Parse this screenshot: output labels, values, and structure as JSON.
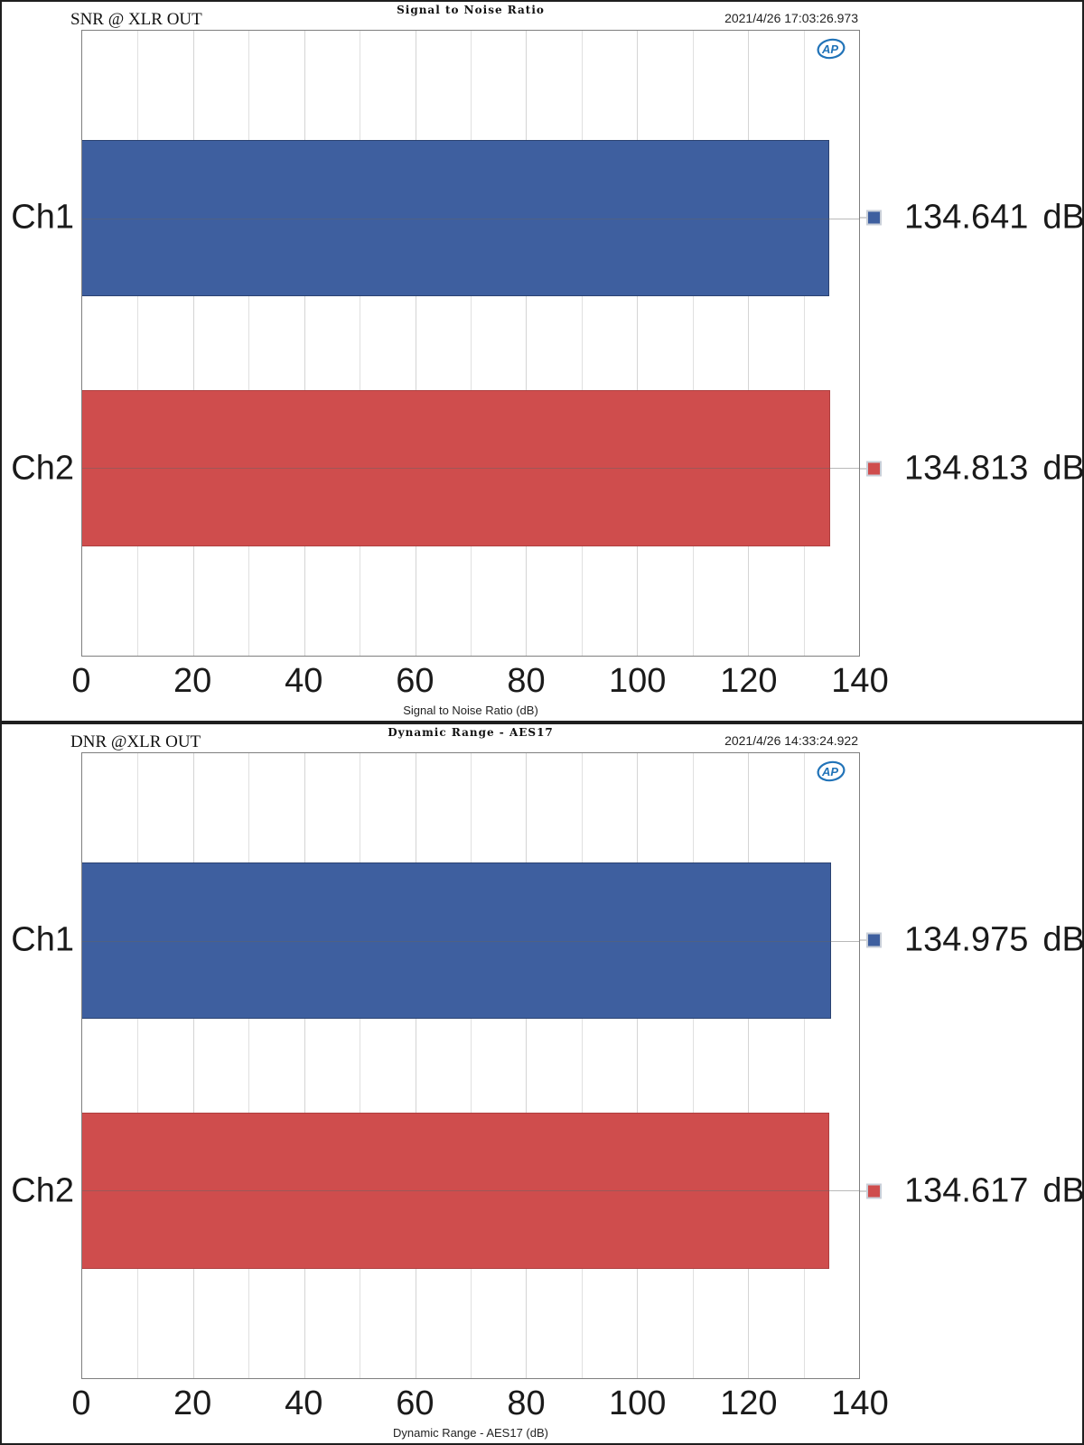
{
  "chart_data": [
    {
      "type": "bar",
      "orientation": "horizontal",
      "title": "Signal to Noise Ratio",
      "annotation_left": "SNR @ XLR OUT",
      "annotation_right": "2021/4/26 17:03:26.973",
      "logo_text": "AP",
      "categories": [
        "Ch1",
        "Ch2"
      ],
      "values": [
        134.641,
        134.813
      ],
      "value_labels": [
        "134.641 dB",
        "134.813 dB"
      ],
      "unit": "dB",
      "xlabel": "Signal to Noise Ratio (dB)",
      "xlim": [
        0,
        140
      ],
      "xticks": [
        0,
        20,
        40,
        60,
        80,
        100,
        120,
        140
      ],
      "minor_grid_step": 10,
      "grid": true,
      "legend_position": "right-of-bars",
      "series_colors": [
        "#3e5f9f",
        "#cf4d4d"
      ],
      "series_border_colors": [
        "#2b4271",
        "#ae3f3f"
      ],
      "logo_color": "#2173b8"
    },
    {
      "type": "bar",
      "orientation": "horizontal",
      "title": "Dynamic Range - AES17",
      "annotation_left": "DNR @XLR OUT",
      "annotation_right": "2021/4/26 14:33:24.922",
      "logo_text": "AP",
      "categories": [
        "Ch1",
        "Ch2"
      ],
      "values": [
        134.975,
        134.617
      ],
      "value_labels": [
        "134.975 dB",
        "134.617 dB"
      ],
      "unit": "dB",
      "xlabel": "Dynamic Range - AES17 (dB)",
      "xlim": [
        0,
        140
      ],
      "xticks": [
        0,
        20,
        40,
        60,
        80,
        100,
        120,
        140
      ],
      "minor_grid_step": 10,
      "grid": true,
      "legend_position": "right-of-bars",
      "series_colors": [
        "#3e5f9f",
        "#cf4d4d"
      ],
      "series_border_colors": [
        "#2b4271",
        "#ae3f3f"
      ],
      "logo_color": "#2173b8"
    }
  ]
}
